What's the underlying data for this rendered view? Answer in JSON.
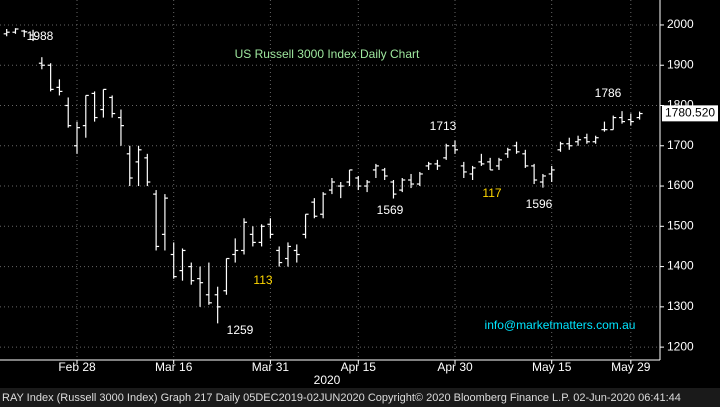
{
  "chart_data": {
    "type": "ohlc",
    "title": "US Russell 3000 Index Daily Chart",
    "watermark": "info@marketmatters.com.au",
    "footer": "RAY Index (Russell 3000 Index) Graph 217  Daily 05DEC2019-02JUN2020  Copyright© 2020 Bloomberg Finance L.P.  02-Jun-2020 06:41:44",
    "x_label": "2020",
    "last_price": 1780.52,
    "last_price_label": "1780.520",
    "xlim": [
      -0.76,
      74.32
    ],
    "xticks": [
      {
        "value": 8,
        "label": "Feb 28"
      },
      {
        "value": 19,
        "label": "Mar 16"
      },
      {
        "value": 30,
        "label": "Mar 31"
      },
      {
        "value": 40,
        "label": "Apr 15"
      },
      {
        "value": 51,
        "label": "Apr 30"
      },
      {
        "value": 62,
        "label": "May 15"
      },
      {
        "value": 71,
        "label": "May 29"
      }
    ],
    "ylim": [
      1168,
      2062
    ],
    "yticks": [
      1200,
      1300,
      1400,
      1500,
      1600,
      1700,
      1800,
      1900,
      2000
    ],
    "grid": true,
    "color": "#ffffff",
    "open": [
      1978,
      1982,
      1985,
      1975,
      1905,
      1900,
      1845,
      1800,
      1700,
      1750,
      1830,
      1790,
      1820,
      1770,
      1680,
      1660,
      1670,
      1580,
      1480,
      1430,
      1390,
      1400,
      1370,
      1330,
      1330,
      1340,
      1430,
      1440,
      1480,
      1460,
      1505,
      1440,
      1420,
      1440,
      1480,
      1560,
      1530,
      1590,
      1600,
      1610,
      1620,
      1600,
      1640,
      1640,
      1610,
      1590,
      1615,
      1605,
      1650,
      1655,
      1670,
      1700,
      1650,
      1630,
      1660,
      1660,
      1650,
      1680,
      1700,
      1680,
      1650,
      1610,
      1630,
      1690,
      1705,
      1710,
      1720,
      1710,
      1740,
      1740,
      1770,
      1765,
      1770
    ],
    "high": [
      1990,
      1992,
      1988,
      1988,
      1920,
      1905,
      1865,
      1820,
      1760,
      1825,
      1835,
      1840,
      1825,
      1790,
      1700,
      1700,
      1680,
      1590,
      1580,
      1460,
      1445,
      1410,
      1400,
      1410,
      1350,
      1420,
      1470,
      1520,
      1500,
      1505,
      1520,
      1450,
      1460,
      1455,
      1530,
      1570,
      1585,
      1620,
      1610,
      1640,
      1625,
      1615,
      1655,
      1645,
      1615,
      1620,
      1630,
      1635,
      1660,
      1665,
      1705,
      1713,
      1660,
      1650,
      1680,
      1670,
      1670,
      1695,
      1710,
      1690,
      1655,
      1630,
      1650,
      1710,
      1720,
      1725,
      1730,
      1725,
      1760,
      1775,
      1786,
      1780,
      1785
    ],
    "low": [
      1972,
      1978,
      1970,
      1960,
      1890,
      1835,
      1825,
      1745,
      1680,
      1720,
      1760,
      1770,
      1770,
      1700,
      1600,
      1600,
      1600,
      1440,
      1440,
      1370,
      1365,
      1355,
      1300,
      1305,
      1259,
      1330,
      1410,
      1430,
      1450,
      1450,
      1470,
      1400,
      1400,
      1410,
      1470,
      1520,
      1520,
      1580,
      1570,
      1600,
      1590,
      1585,
      1620,
      1615,
      1569,
      1585,
      1595,
      1600,
      1640,
      1640,
      1665,
      1680,
      1620,
      1615,
      1650,
      1640,
      1640,
      1670,
      1680,
      1645,
      1605,
      1596,
      1610,
      1685,
      1690,
      1700,
      1705,
      1705,
      1735,
      1740,
      1755,
      1750,
      1765
    ],
    "close": [
      1982,
      1990,
      1983,
      1965,
      1900,
      1840,
      1835,
      1750,
      1745,
      1825,
      1770,
      1840,
      1780,
      1750,
      1620,
      1690,
      1610,
      1450,
      1570,
      1375,
      1440,
      1365,
      1360,
      1310,
      1300,
      1420,
      1440,
      1510,
      1460,
      1500,
      1480,
      1410,
      1450,
      1430,
      1530,
      1525,
      1580,
      1610,
      1600,
      1640,
      1600,
      1610,
      1650,
      1625,
      1580,
      1615,
      1605,
      1630,
      1655,
      1650,
      1700,
      1690,
      1635,
      1645,
      1655,
      1640,
      1665,
      1690,
      1685,
      1650,
      1615,
      1625,
      1640,
      1705,
      1700,
      1715,
      1710,
      1720,
      1740,
      1770,
      1760,
      1760,
      1780
    ],
    "annotations": [
      {
        "text": "1988",
        "color": "#ffffff"
      },
      {
        "text": "1259",
        "color": "#ffffff"
      },
      {
        "text": "113",
        "color": "#ffd700"
      },
      {
        "text": "1569",
        "color": "#ffffff"
      },
      {
        "text": "1713",
        "color": "#ffffff"
      },
      {
        "text": "117",
        "color": "#ffd700"
      },
      {
        "text": "1596",
        "color": "#ffffff"
      },
      {
        "text": "1786",
        "color": "#ffffff"
      }
    ]
  }
}
